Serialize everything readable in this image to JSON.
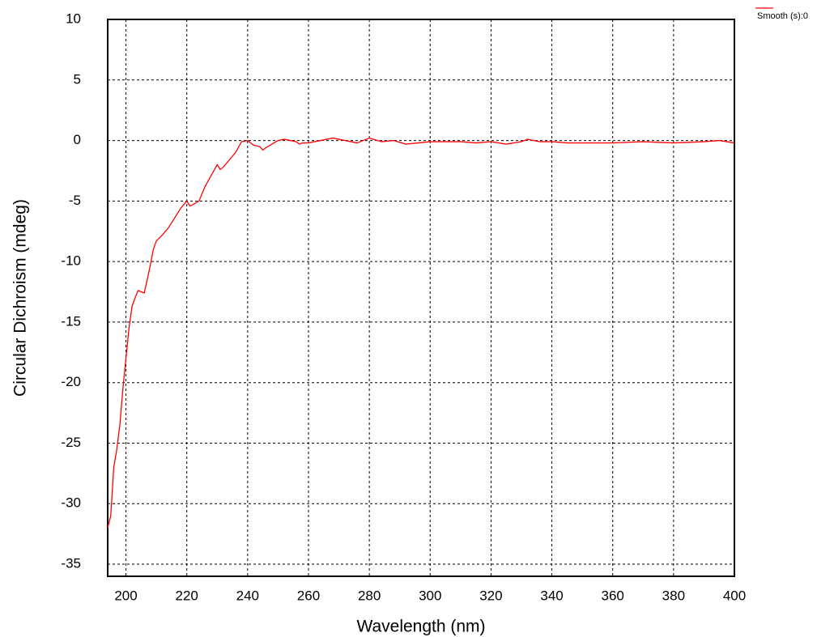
{
  "chart_data": {
    "type": "line",
    "xlabel": "Wavelength (nm)",
    "ylabel": "Circular Dichroism (mdeg)",
    "xlim": [
      194,
      400
    ],
    "ylim": [
      -36,
      10
    ],
    "xticks": [
      200,
      220,
      240,
      260,
      280,
      300,
      320,
      340,
      360,
      380,
      400
    ],
    "yticks": [
      10,
      5,
      0,
      -5,
      -10,
      -15,
      -20,
      -25,
      -30,
      -35
    ],
    "grid": true,
    "legend_position": "top-right",
    "x": [
      194,
      195,
      196,
      197,
      198,
      199,
      200,
      201,
      202,
      203,
      204,
      205,
      206,
      207,
      208,
      209,
      210,
      212,
      214,
      216,
      218,
      220,
      221,
      222,
      224,
      226,
      228,
      230,
      231,
      232,
      234,
      236,
      238,
      240,
      242,
      244,
      245,
      246,
      248,
      250,
      252,
      254,
      256,
      257,
      258,
      260,
      264,
      268,
      272,
      276,
      280,
      284,
      288,
      292,
      296,
      300,
      305,
      310,
      315,
      320,
      325,
      330,
      332,
      336,
      340,
      345,
      350,
      360,
      370,
      380,
      390,
      395,
      400
    ],
    "series": [
      {
        "name": "Smooth (s):0",
        "color": "#ff0000",
        "values": [
          -32,
          -31,
          -27,
          -25.5,
          -23.5,
          -20.5,
          -18,
          -15.5,
          -13.7,
          -13,
          -12.4,
          -12.5,
          -12.6,
          -11.5,
          -10.3,
          -9,
          -8.3,
          -7.8,
          -7.2,
          -6.4,
          -5.6,
          -5,
          -5.4,
          -5.3,
          -5,
          -3.8,
          -2.9,
          -2,
          -2.4,
          -2.2,
          -1.6,
          -1,
          -0.1,
          0,
          -0.4,
          -0.5,
          -0.8,
          -0.6,
          -0.3,
          0,
          0.1,
          0,
          -0.1,
          -0.3,
          -0.2,
          -0.2,
          0,
          0.2,
          0,
          -0.2,
          0.2,
          -0.1,
          0,
          -0.3,
          -0.2,
          -0.1,
          -0.1,
          -0.1,
          -0.2,
          -0.1,
          -0.3,
          -0.1,
          0.1,
          -0.1,
          -0.1,
          -0.2,
          -0.2,
          -0.2,
          -0.1,
          -0.2,
          -0.1,
          0,
          -0.2
        ]
      }
    ]
  }
}
